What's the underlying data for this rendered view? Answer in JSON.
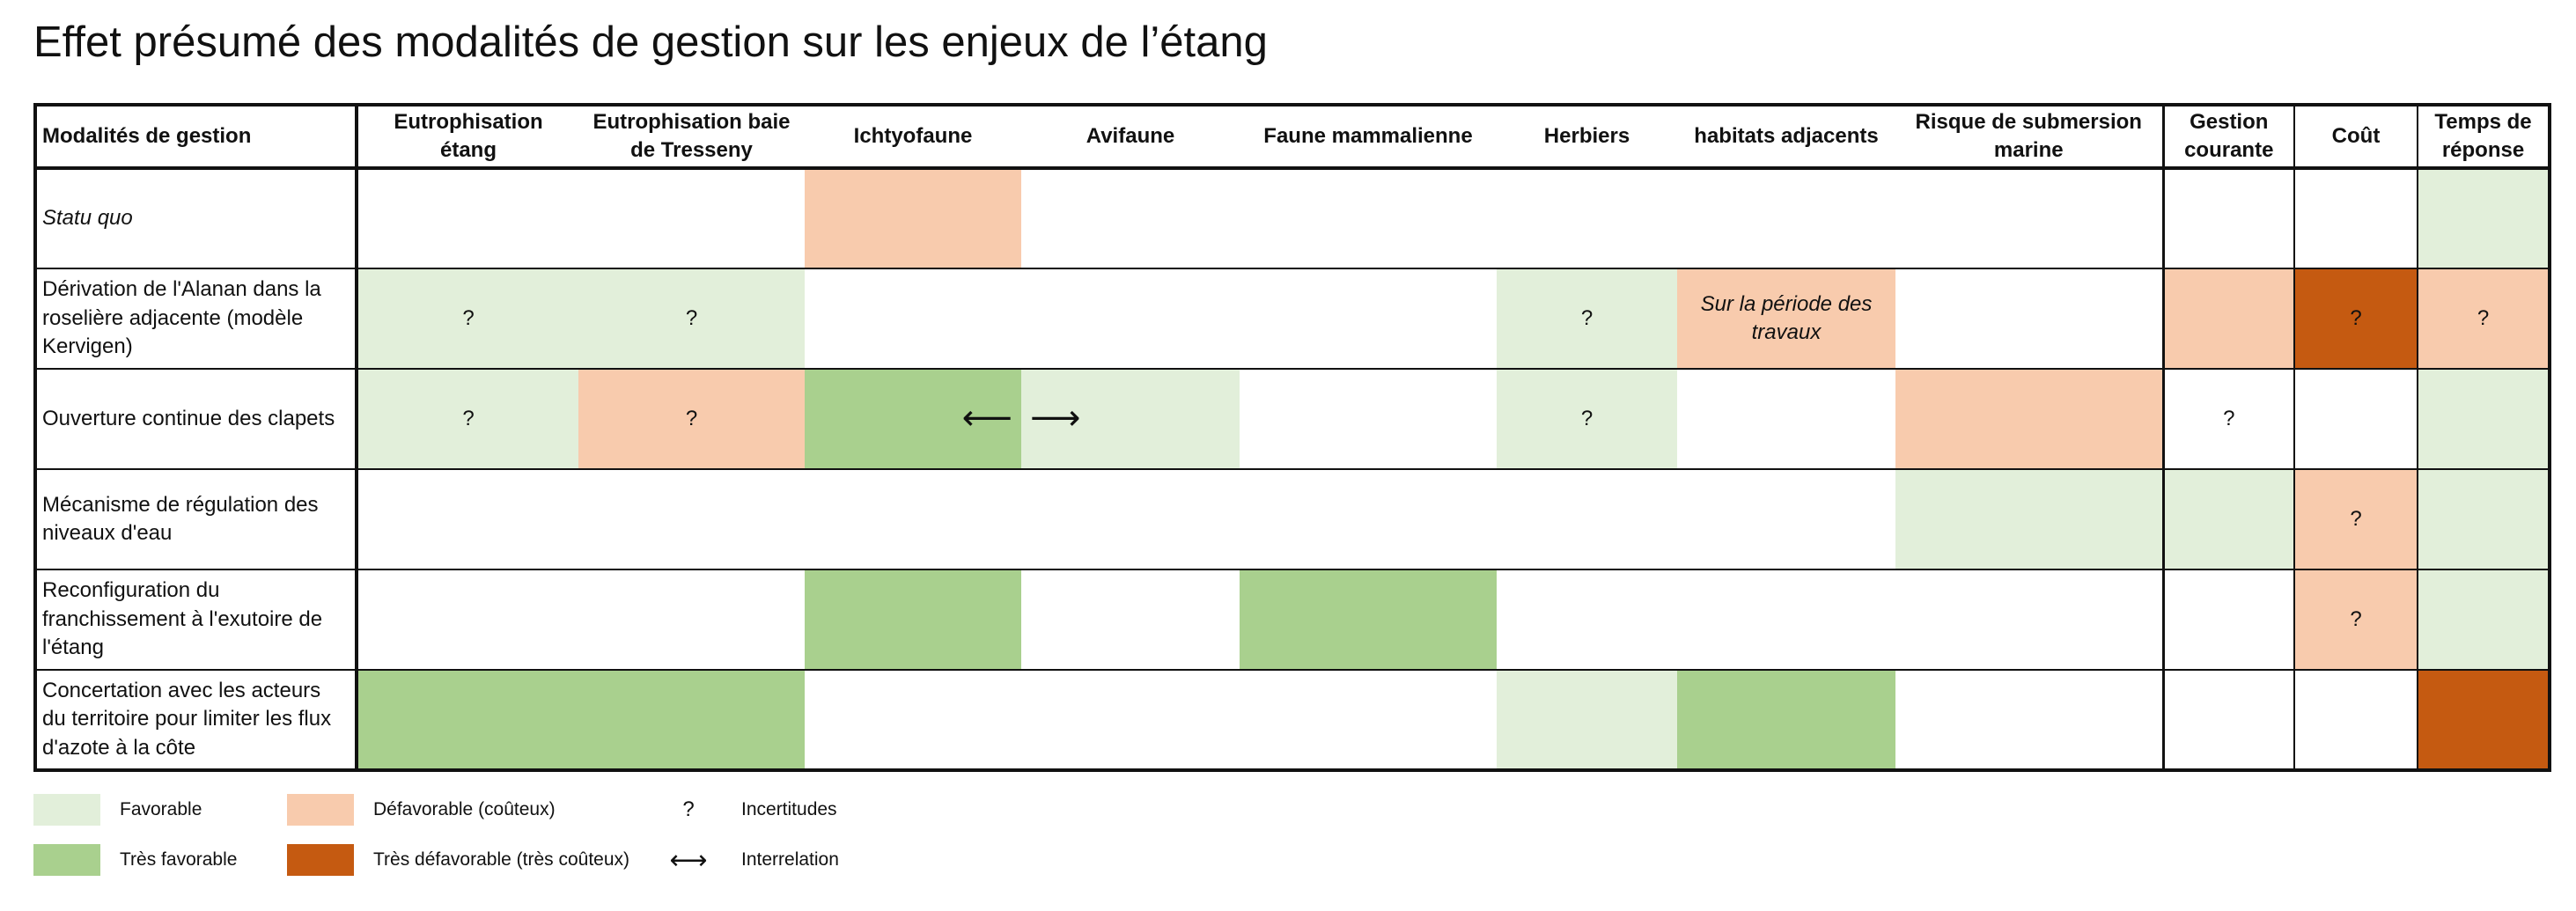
{
  "title": "Effet présumé des modalités de gestion sur les enjeux de l’étang",
  "columns": [
    "Modalités de gestion",
    "Eutrophisation étang",
    "Eutrophisation baie de Tresseny",
    "Ichtyofaune",
    "Avifaune",
    "Faune mammalienne",
    "Herbiers",
    "habitats adjacents",
    "Risque de submersion marine",
    "Gestion courante",
    "Coût",
    "Temps de réponse"
  ],
  "rows": [
    {
      "label": "Statu quo",
      "cells": [
        "",
        "",
        "",
        "",
        "",
        "",
        "",
        "",
        "",
        "",
        ""
      ]
    },
    {
      "label": "Dérivation de l'Alanan dans la roselière adjacente (modèle Kervigen)",
      "cells": [
        "?",
        "?",
        "",
        "",
        "",
        "?",
        "Sur la période des travaux",
        "",
        "",
        "?",
        "?"
      ]
    },
    {
      "label": "Ouverture continue des clapets",
      "cells": [
        "?",
        "?",
        "",
        "",
        "",
        "?",
        "",
        "",
        "?",
        "",
        ""
      ],
      "arrow_left": "⟵",
      "arrow_right": "⟶"
    },
    {
      "label": "Mécanisme de régulation des niveaux d'eau",
      "cells": [
        "",
        "",
        "",
        "",
        "",
        "",
        "",
        "",
        "",
        "?",
        ""
      ]
    },
    {
      "label": "Reconfiguration du franchissement à l'exutoire de l'étang",
      "cells": [
        "",
        "",
        "",
        "",
        "",
        "",
        "",
        "",
        "",
        "?",
        ""
      ]
    },
    {
      "label": "Concertation avec les acteurs du territoire pour limiter les flux d'azote à la côte",
      "cells": [
        "",
        "",
        "",
        "",
        "",
        "",
        "",
        "",
        "",
        "",
        ""
      ]
    }
  ],
  "ratings": [
    [
      "none",
      "none",
      "def",
      "none",
      "none",
      "none",
      "none",
      "none",
      "none",
      "none",
      "fav"
    ],
    [
      "fav",
      "fav",
      "none",
      "none",
      "none",
      "fav",
      "def",
      "none",
      "def",
      "tdef",
      "def"
    ],
    [
      "fav",
      "def",
      "tfav",
      "fav",
      "none",
      "fav",
      "none",
      "def",
      "none",
      "none",
      "fav"
    ],
    [
      "none",
      "none",
      "none",
      "none",
      "none",
      "none",
      "none",
      "fav",
      "fav",
      "def",
      "fav"
    ],
    [
      "none",
      "none",
      "tfav",
      "none",
      "tfav",
      "none",
      "none",
      "none",
      "none",
      "def",
      "fav"
    ],
    [
      "tfav",
      "tfav",
      "none",
      "none",
      "none",
      "fav",
      "tfav",
      "none",
      "none",
      "none",
      "tdef"
    ]
  ],
  "colors": {
    "fav": "#e2efda",
    "tfav": "#a9d08e",
    "def": "#f8cbad",
    "tdef": "#c55a11"
  },
  "legend": {
    "favorable": "Favorable",
    "tres_favorable": "Très favorable",
    "defavorable": "Défavorable (coûteux)",
    "tres_defavorable": "Très défavorable (très coûteux)",
    "uncertainty_symbol": "?",
    "uncertainty_label": "Incertitudes",
    "interrelation_symbol": "⟷",
    "interrelation_label": "Interrelation"
  }
}
